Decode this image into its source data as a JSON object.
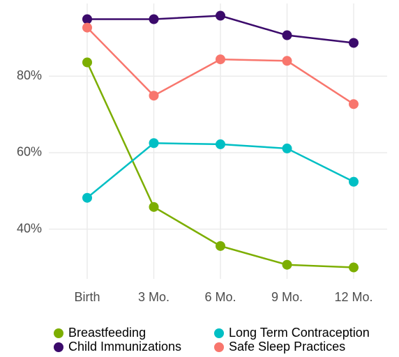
{
  "chart_data": {
    "type": "line",
    "categories": [
      "Birth",
      "3 Mo.",
      "6 Mo.",
      "9 Mo.",
      "12 Mo."
    ],
    "series": [
      {
        "name": "Breastfeeding",
        "color": "#7cae00",
        "values": [
          83.6,
          45.8,
          35.6,
          30.7,
          30.0
        ]
      },
      {
        "name": "Child Immunizations",
        "color": "#3b0a6b",
        "values": [
          94.9,
          94.9,
          95.8,
          90.7,
          88.7
        ]
      },
      {
        "name": "Long Term Contraception",
        "color": "#00bfc4",
        "values": [
          48.2,
          62.5,
          62.2,
          61.1,
          52.4
        ]
      },
      {
        "name": "Safe Sleep Practices",
        "color": "#f8766d",
        "values": [
          92.7,
          74.9,
          84.4,
          84.0,
          72.7
        ]
      }
    ],
    "ylim": [
      27,
      99
    ],
    "yticks": [
      {
        "value": 40,
        "label": "40%"
      },
      {
        "value": 60,
        "label": "60%"
      },
      {
        "value": 80,
        "label": "80%"
      }
    ],
    "grid": true
  }
}
